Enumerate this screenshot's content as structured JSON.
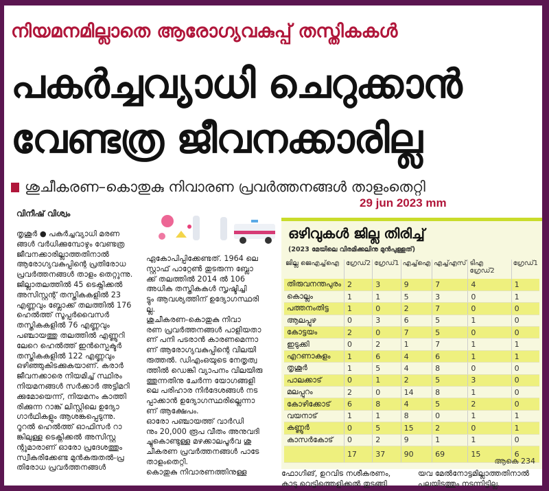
{
  "kicker": "നിയമനമില്ലാതെ ആരോഗ്യവകുപ്പ് തസ്തികകൾ",
  "headline": [
    "പകർച്ചവ്യാധി ചെറുക്കാൻ",
    "വേണ്ടത്ര ജീവനക്കാരില്ല"
  ],
  "subheadline": "ശുചീകരണ–കൊതുകു നിവാരണ പ്രവർത്തനങ്ങൾ താളംതെറ്റി",
  "date": "29 jun 2023 mm",
  "byline": "വിനീഷ് വിശ്വം",
  "col1": [
    "തൃശൂർ ● പകർച്ചവ്യാധി മരണ",
    "ങ്ങൾ വർധിക്കുമ്പോഴും വേണ്ടത്ര",
    "ജീവനക്കാരില്ലാത്തതിനാൽ",
    "ആരോഗ്യവകുപ്പിന്റെ പ്രതിരോധ",
    "പ്രവർത്തനങ്ങൾ താളം തെറ്റുന്നു.",
    "ജില്ലാതലത്തിൽ 45 ടെക്നിക്കൽ",
    "അസിസ്റ്റന്റ് തസ്തികകളിൽ 23",
    "എണ്ണവും ബ്ലോക്ക് തലത്തിൽ 176",
    "ഹെൽത്ത് സൂപ്പർവൈസർ",
    "തസ്തികകളിൽ 76 എണ്ണവും",
    "പഞ്ചായത്തു തലത്തിൽ എണ്ണൂറി",
    "ലേറെ ഹെൽത്ത് ഇൻസ്പെക്ടർ",
    "തസ്തികകളിൽ 122 എണ്ണവും",
    "ഒഴിഞ്ഞുകിടക്കുകയാണ്. കരാർ",
    "ജീവനക്കാരെ നിയമിച്ച് സ്ഥിരം",
    "നിയമനങ്ങൾ സർക്കാർ അട്ടിമറി",
    "ക്കുമോയെന്ന്, നിയമനം കാത്തി",
    "രിക്കുന്ന റാങ്ക് ലിസ്റ്റിലെ ഉദ്യോ",
    "ഗാർഥികളും ആശങ്കപ്പെടുന്നു.",
    "  റൂറൽ ഹെൽത്ത് ഓഫിസർ റാ",
    "ങ്കിലുള്ള ടെക്നിക്കൽ അസിസ്റ്റ",
    "ന്റുമാരാണ് ഓരോ പ്രദേശത്തും",
    "സ്വീകരിക്കേണ്ട മുൻകരുതൽ-പ്ര",
    "തിരോധ പ്രവർത്തനങ്ങൾ"
  ],
  "col2": [
    "ഏകോപിപ്പിക്കേണ്ടത്. 1964 ലെ",
    "സ്റ്റാഫ് പാറ്റേൺ തുടരുന്ന ബ്ലോ",
    "ക്ക് തലത്തിൽ 2014 ൽ 106",
    "അധിക തസ്തികകൾ സൃഷ്ടിച്ചി",
    "ട്ടും ആവശ്യത്തിന് ഉദ്യോഗസ്ഥരി",
    "ല്ല.",
    "  ശുചീകരണ-കൊതുകു നിവാ",
    "രണ പ്രവർത്തനങ്ങൾ പാളിയതാ",
    "ണ് പനി പടരാൻ കാരണമെന്നാ",
    "ണ് ആരോഗ്യവകുപ്പിന്റെ വിലയി",
    "രുത്തൽ. ഡിഎംഒയുടെ നേതൃത്വ",
    "ത്തിൽ ഡെങ്കി വ്യാപനം വിലയിരു",
    "ത്തുന്നതിനു ചേർന്ന യോഗങ്ങളി",
    "ലെ പരിഹാര നിർദേശങ്ങൾ നട",
    "പ്പാക്കാൻ ഉദ്യോഗസ്ഥരില്ലെന്നാ",
    "ണ് ആക്ഷേപം.",
    "  ഓരോ പഞ്ചായത്ത് വാർഡി",
    "നും 20,000 രൂപ വീതം അനുവദി",
    "ച്ചുകൊണ്ടുള്ള മഴക്കാലപൂർവ ശു",
    "ചീകരണ പ്രവർത്തനങ്ങൾ പാടേ",
    "താളംതെറ്റി.",
    "  കൊതുകു നിവാരണത്തിനുള്ള"
  ],
  "col3": [
    "ഫോഗിങ്, ഉറവിട നശീകരണം,",
    "കാടു വെട്ടിത്തെളിക്കൽ തുടങ്ങി"
  ],
  "col4": [
    "യവ മേൽനോട്ടമില്ലാത്തതിനാൽ",
    "പലയിടത്തും നടന്നിട്ടില്ല."
  ],
  "table": {
    "title": "ഒഴിവുകൾ ജില്ല തിരിച്ച്",
    "note": "(2023 മേയിലെ വിരമിക്കലിനു മുൻപുള്ളത്)",
    "headers": [
      "ജില്ല ജെഎച്ച്ഐ",
      "ഗ്രേഡ്2",
      "ഗ്രേഡ്1",
      "എച്ച്ഐ",
      "എച്ച്എസ്",
      "ടിഎ ഗ്രേഡ്2",
      "ഗ്രേഡ്1"
    ],
    "rows": [
      [
        "തിരുവനന്തപുരം",
        "2",
        "3",
        "9",
        "7",
        "4",
        "1"
      ],
      [
        "കൊല്ലം",
        "1",
        "1",
        "5",
        "3",
        "0",
        "1"
      ],
      [
        "പത്തനംതിട്ട",
        "1",
        "0",
        "2",
        "7",
        "0",
        "0"
      ],
      [
        "ആലപ്പുഴ",
        "0",
        "3",
        "6",
        "5",
        "1",
        "0"
      ],
      [
        "കോട്ടയം",
        "2",
        "0",
        "7",
        "5",
        "0",
        "0"
      ],
      [
        "ഇടുക്കി",
        "0",
        "2",
        "1",
        "7",
        "1",
        "1"
      ],
      [
        "എറണാകുളം",
        "1",
        "6",
        "4",
        "6",
        "1",
        "1"
      ],
      [
        "തൃശൂർ",
        "1",
        "5",
        "4",
        "8",
        "0",
        "0"
      ],
      [
        "പാലക്കാട്",
        "0",
        "1",
        "2",
        "5",
        "3",
        "0"
      ],
      [
        "മലപ്പുറം",
        "2",
        "0",
        "14",
        "8",
        "1",
        "0"
      ],
      [
        "കോഴിക്കോട്",
        "6",
        "8",
        "4",
        "5",
        "2",
        "0"
      ],
      [
        "വയനാട്",
        "1",
        "1",
        "8",
        "0",
        "1",
        "1"
      ],
      [
        "കണ്ണൂർ",
        "0",
        "5",
        "15",
        "2",
        "0",
        "1"
      ],
      [
        "കാസർകോട്",
        "0",
        "2",
        "9",
        "1",
        "1",
        "0"
      ]
    ],
    "totals": [
      "",
      "17",
      "37",
      "90",
      "69",
      "15",
      "6"
    ],
    "grand_total": "ആകെ 234"
  },
  "colors": {
    "frame": "#5b1650",
    "accent": "#b0163a",
    "highlight": "#eef07e",
    "box_bg": "#f7f8de"
  }
}
